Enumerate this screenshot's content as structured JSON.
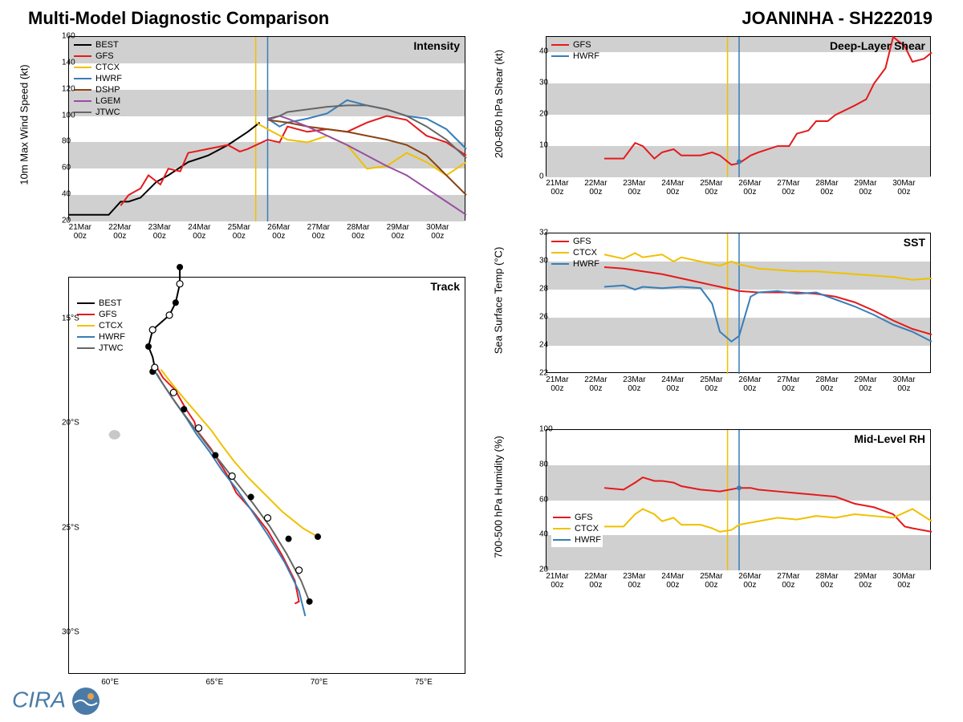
{
  "header": {
    "left": "Multi-Model Diagnostic Comparison",
    "right": "JOANINHA - SH222019"
  },
  "logo": "CIRA",
  "xticks": [
    "21Mar 00z",
    "22Mar 00z",
    "23Mar 00z",
    "24Mar 00z",
    "25Mar 00z",
    "26Mar 00z",
    "27Mar 00z",
    "28Mar 00z",
    "29Mar 00z",
    "30Mar 00z"
  ],
  "xlim": [
    0,
    10
  ],
  "colors": {
    "BEST": "#000000",
    "GFS": "#e41a1c",
    "CTCX": "#f0c000",
    "HWRF": "#377eb8",
    "DSHP": "#8b4513",
    "LGEM": "#984ea3",
    "JTWC": "#666666",
    "band": "#d0d0d0",
    "vline1": "#f0c000",
    "vline2": "#377eb8"
  },
  "vlines": [
    4.7,
    5.0
  ],
  "intensity": {
    "label": "Intensity",
    "ylabel": "10m Max Wind Speed (kt)",
    "ylim": [
      20,
      160
    ],
    "ytick_step": 20,
    "bands": [
      [
        20,
        40
      ],
      [
        60,
        80
      ],
      [
        100,
        120
      ],
      [
        140,
        160
      ]
    ],
    "legend": [
      "BEST",
      "GFS",
      "CTCX",
      "HWRF",
      "DSHP",
      "LGEM",
      "JTWC"
    ],
    "series": {
      "BEST": [
        [
          0,
          25
        ],
        [
          0.5,
          25
        ],
        [
          1,
          25
        ],
        [
          1.3,
          35
        ],
        [
          1.5,
          35
        ],
        [
          1.8,
          38
        ],
        [
          2.2,
          50
        ],
        [
          2.5,
          55
        ],
        [
          3,
          65
        ],
        [
          3.5,
          70
        ],
        [
          4,
          78
        ],
        [
          4.5,
          88
        ],
        [
          4.8,
          95
        ]
      ],
      "GFS": [
        [
          1.3,
          32
        ],
        [
          1.5,
          40
        ],
        [
          1.8,
          45
        ],
        [
          2,
          55
        ],
        [
          2.3,
          48
        ],
        [
          2.5,
          60
        ],
        [
          2.8,
          58
        ],
        [
          3,
          72
        ],
        [
          3.5,
          75
        ],
        [
          4,
          78
        ],
        [
          4.3,
          73
        ],
        [
          4.5,
          75
        ],
        [
          5,
          82
        ],
        [
          5.3,
          80
        ],
        [
          5.5,
          92
        ],
        [
          6,
          88
        ],
        [
          6.5,
          90
        ],
        [
          7,
          88
        ],
        [
          7.5,
          95
        ],
        [
          8,
          100
        ],
        [
          8.5,
          97
        ],
        [
          9,
          85
        ],
        [
          9.5,
          80
        ],
        [
          10,
          70
        ]
      ],
      "CTCX": [
        [
          4.7,
          95
        ],
        [
          5,
          90
        ],
        [
          5.5,
          82
        ],
        [
          6,
          80
        ],
        [
          6.5,
          85
        ],
        [
          7,
          78
        ],
        [
          7.5,
          60
        ],
        [
          8,
          62
        ],
        [
          8.5,
          72
        ],
        [
          9,
          65
        ],
        [
          9.5,
          55
        ],
        [
          10,
          65
        ]
      ],
      "HWRF": [
        [
          5,
          98
        ],
        [
          5.3,
          92
        ],
        [
          5.5,
          95
        ],
        [
          6,
          98
        ],
        [
          6.5,
          102
        ],
        [
          7,
          112
        ],
        [
          7.5,
          108
        ],
        [
          8,
          105
        ],
        [
          8.5,
          100
        ],
        [
          9,
          98
        ],
        [
          9.5,
          90
        ],
        [
          10,
          75
        ]
      ],
      "DSHP": [
        [
          5,
          97
        ],
        [
          5.5,
          95
        ],
        [
          6,
          92
        ],
        [
          6.5,
          90
        ],
        [
          7,
          88
        ],
        [
          7.5,
          85
        ],
        [
          8,
          82
        ],
        [
          8.5,
          78
        ],
        [
          9,
          70
        ],
        [
          9.5,
          55
        ],
        [
          10,
          40
        ]
      ],
      "LGEM": [
        [
          5,
          97
        ],
        [
          5.3,
          100
        ],
        [
          5.5,
          98
        ],
        [
          6,
          92
        ],
        [
          6.5,
          85
        ],
        [
          7,
          78
        ],
        [
          7.5,
          70
        ],
        [
          8,
          62
        ],
        [
          8.5,
          55
        ],
        [
          9,
          45
        ],
        [
          9.5,
          35
        ],
        [
          10,
          25
        ]
      ],
      "JTWC": [
        [
          5,
          98
        ],
        [
          5.3,
          100
        ],
        [
          5.5,
          103
        ],
        [
          6,
          105
        ],
        [
          6.5,
          107
        ],
        [
          7,
          108
        ],
        [
          7.5,
          108
        ],
        [
          8,
          105
        ],
        [
          8.5,
          100
        ],
        [
          9,
          92
        ],
        [
          9.5,
          82
        ],
        [
          10,
          68
        ]
      ]
    }
  },
  "shear": {
    "label": "Deep-Layer Shear",
    "ylabel": "200-850 hPa Shear (kt)",
    "ylim": [
      0,
      45
    ],
    "yticks": [
      0,
      10,
      20,
      30,
      40
    ],
    "bands": [
      [
        0,
        10
      ],
      [
        20,
        30
      ],
      [
        40,
        45
      ]
    ],
    "legend": [
      "GFS",
      "HWRF"
    ],
    "series": {
      "GFS": [
        [
          1.5,
          6
        ],
        [
          2,
          6
        ],
        [
          2.3,
          11
        ],
        [
          2.5,
          10
        ],
        [
          2.8,
          6
        ],
        [
          3,
          8
        ],
        [
          3.3,
          9
        ],
        [
          3.5,
          7
        ],
        [
          4,
          7
        ],
        [
          4.3,
          8
        ],
        [
          4.5,
          7
        ],
        [
          4.8,
          4
        ],
        [
          5,
          4.5
        ],
        [
          5.3,
          7
        ],
        [
          5.5,
          8
        ],
        [
          6,
          10
        ],
        [
          6.3,
          10
        ],
        [
          6.5,
          14
        ],
        [
          6.8,
          15
        ],
        [
          7,
          18
        ],
        [
          7.3,
          18
        ],
        [
          7.5,
          20
        ],
        [
          8,
          23
        ],
        [
          8.3,
          25
        ],
        [
          8.5,
          30
        ],
        [
          8.8,
          35
        ],
        [
          9,
          45
        ],
        [
          9.3,
          42
        ],
        [
          9.5,
          37
        ],
        [
          9.8,
          38
        ],
        [
          10,
          40
        ]
      ],
      "HWRF": [
        [
          5,
          5
        ]
      ]
    }
  },
  "sst": {
    "label": "SST",
    "ylabel": "Sea Surface Temp (°C)",
    "ylim": [
      22,
      32
    ],
    "ytick_step": 2,
    "bands": [
      [
        24,
        26
      ],
      [
        28,
        30
      ]
    ],
    "legend": [
      "GFS",
      "CTCX",
      "HWRF"
    ],
    "series": {
      "GFS": [
        [
          1.5,
          29.6
        ],
        [
          2,
          29.5
        ],
        [
          2.5,
          29.3
        ],
        [
          3,
          29.1
        ],
        [
          3.5,
          28.8
        ],
        [
          4,
          28.5
        ],
        [
          4.5,
          28.2
        ],
        [
          5,
          27.9
        ],
        [
          5.5,
          27.8
        ],
        [
          6,
          27.8
        ],
        [
          6.5,
          27.8
        ],
        [
          7,
          27.7
        ],
        [
          7.5,
          27.5
        ],
        [
          8,
          27.1
        ],
        [
          8.5,
          26.5
        ],
        [
          9,
          25.8
        ],
        [
          9.5,
          25.2
        ],
        [
          10,
          24.8
        ]
      ],
      "CTCX": [
        [
          1.5,
          30.5
        ],
        [
          2,
          30.2
        ],
        [
          2.3,
          30.6
        ],
        [
          2.5,
          30.3
        ],
        [
          3,
          30.5
        ],
        [
          3.3,
          30
        ],
        [
          3.5,
          30.3
        ],
        [
          4,
          30
        ],
        [
          4.5,
          29.7
        ],
        [
          4.8,
          30
        ],
        [
          5,
          29.8
        ],
        [
          5.5,
          29.5
        ],
        [
          6,
          29.4
        ],
        [
          6.5,
          29.3
        ],
        [
          7,
          29.3
        ],
        [
          7.5,
          29.2
        ],
        [
          8,
          29.1
        ],
        [
          8.5,
          29
        ],
        [
          9,
          28.9
        ],
        [
          9.5,
          28.7
        ],
        [
          10,
          28.8
        ]
      ],
      "HWRF": [
        [
          1.5,
          28.2
        ],
        [
          2,
          28.3
        ],
        [
          2.3,
          28
        ],
        [
          2.5,
          28.2
        ],
        [
          3,
          28.1
        ],
        [
          3.5,
          28.2
        ],
        [
          4,
          28.1
        ],
        [
          4.3,
          27
        ],
        [
          4.5,
          25
        ],
        [
          4.8,
          24.3
        ],
        [
          5,
          24.7
        ],
        [
          5.3,
          27.5
        ],
        [
          5.5,
          27.8
        ],
        [
          6,
          27.9
        ],
        [
          6.5,
          27.7
        ],
        [
          7,
          27.8
        ],
        [
          7.5,
          27.3
        ],
        [
          8,
          26.8
        ],
        [
          8.5,
          26.2
        ],
        [
          9,
          25.5
        ],
        [
          9.5,
          25
        ],
        [
          10,
          24.3
        ]
      ]
    }
  },
  "rh": {
    "label": "Mid-Level RH",
    "ylabel": "700-500 hPa Humidity (%)",
    "ylim": [
      20,
      100
    ],
    "ytick_step": 20,
    "bands": [
      [
        20,
        40
      ],
      [
        60,
        80
      ]
    ],
    "legend": [
      "GFS",
      "CTCX",
      "HWRF"
    ],
    "series": {
      "GFS": [
        [
          1.5,
          67
        ],
        [
          2,
          66
        ],
        [
          2.3,
          70
        ],
        [
          2.5,
          73
        ],
        [
          2.8,
          71
        ],
        [
          3,
          71
        ],
        [
          3.3,
          70
        ],
        [
          3.5,
          68
        ],
        [
          4,
          66
        ],
        [
          4.5,
          65
        ],
        [
          5,
          67
        ],
        [
          5.3,
          67
        ],
        [
          5.5,
          66
        ],
        [
          6,
          65
        ],
        [
          6.5,
          64
        ],
        [
          7,
          63
        ],
        [
          7.5,
          62
        ],
        [
          8,
          58
        ],
        [
          8.5,
          56
        ],
        [
          9,
          52
        ],
        [
          9.3,
          45
        ],
        [
          9.5,
          44
        ],
        [
          10,
          42
        ]
      ],
      "CTCX": [
        [
          1.5,
          45
        ],
        [
          2,
          45
        ],
        [
          2.3,
          52
        ],
        [
          2.5,
          55
        ],
        [
          2.8,
          52
        ],
        [
          3,
          48
        ],
        [
          3.3,
          50
        ],
        [
          3.5,
          46
        ],
        [
          4,
          46
        ],
        [
          4.3,
          44
        ],
        [
          4.5,
          42
        ],
        [
          4.8,
          43
        ],
        [
          5,
          46
        ],
        [
          5.5,
          48
        ],
        [
          6,
          50
        ],
        [
          6.5,
          49
        ],
        [
          7,
          51
        ],
        [
          7.5,
          50
        ],
        [
          8,
          52
        ],
        [
          8.5,
          51
        ],
        [
          9,
          50
        ],
        [
          9.3,
          53
        ],
        [
          9.5,
          55
        ],
        [
          10,
          48
        ]
      ],
      "HWRF": [
        [
          5,
          67
        ]
      ]
    }
  },
  "track": {
    "label": "Track",
    "ylabel_left": "",
    "xlims": [
      58,
      77
    ],
    "xticks": [
      60,
      65,
      70,
      75
    ],
    "ylim": [
      -32,
      -13
    ],
    "yticks": [
      -30,
      -25,
      -20,
      -15
    ],
    "legend": [
      "BEST",
      "GFS",
      "CTCX",
      "HWRF",
      "JTWC"
    ],
    "landblob": [
      [
        60.2,
        -20.5
      ]
    ],
    "series": {
      "BEST": [
        [
          63.3,
          -12.5
        ],
        [
          63.3,
          -13.3
        ],
        [
          63.1,
          -14.2
        ],
        [
          62.8,
          -14.8
        ],
        [
          62.0,
          -15.5
        ],
        [
          61.8,
          -16.3
        ],
        [
          62.0,
          -16.8
        ],
        [
          62.1,
          -17.3
        ],
        [
          62.0,
          -17.5
        ]
      ],
      "GFS": [
        [
          62.2,
          -17.3
        ],
        [
          62.5,
          -17.8
        ],
        [
          63.1,
          -18.4
        ],
        [
          63.2,
          -18.6
        ],
        [
          63.6,
          -19.3
        ],
        [
          64.0,
          -19.9
        ],
        [
          64.1,
          -20.3
        ],
        [
          64.8,
          -21.2
        ],
        [
          65.1,
          -21.7
        ],
        [
          65.6,
          -22.5
        ],
        [
          66.0,
          -23.3
        ],
        [
          66.8,
          -24.2
        ],
        [
          67.5,
          -25.1
        ],
        [
          68.2,
          -26.3
        ],
        [
          68.8,
          -27.5
        ],
        [
          69.0,
          -28.5
        ],
        [
          68.8,
          -28.6
        ]
      ],
      "CTCX": [
        [
          62.4,
          -17.4
        ],
        [
          62.7,
          -17.8
        ],
        [
          63.1,
          -18.3
        ],
        [
          63.6,
          -18.9
        ],
        [
          64.2,
          -19.6
        ],
        [
          64.8,
          -20.3
        ],
        [
          65.3,
          -21.0
        ],
        [
          65.9,
          -21.8
        ],
        [
          66.6,
          -22.6
        ],
        [
          67.4,
          -23.4
        ],
        [
          68.2,
          -24.2
        ],
        [
          69.2,
          -25.0
        ],
        [
          69.9,
          -25.4
        ]
      ],
      "HWRF": [
        [
          62.0,
          -17.3
        ],
        [
          62.3,
          -17.8
        ],
        [
          62.7,
          -18.4
        ],
        [
          63.1,
          -19.0
        ],
        [
          63.6,
          -19.7
        ],
        [
          64.1,
          -20.5
        ],
        [
          64.7,
          -21.3
        ],
        [
          65.3,
          -22.2
        ],
        [
          66.0,
          -23.1
        ],
        [
          66.7,
          -24.1
        ],
        [
          67.5,
          -25.3
        ],
        [
          68.3,
          -26.6
        ],
        [
          69.0,
          -28.0
        ],
        [
          69.3,
          -29.2
        ]
      ],
      "JTWC": [
        [
          62.2,
          -17.6
        ],
        [
          62.5,
          -18.1
        ],
        [
          62.9,
          -18.7
        ],
        [
          63.4,
          -19.4
        ],
        [
          64.0,
          -20.2
        ],
        [
          64.6,
          -21.0
        ],
        [
          65.3,
          -21.9
        ],
        [
          66.0,
          -22.8
        ],
        [
          66.8,
          -23.8
        ],
        [
          67.6,
          -24.9
        ],
        [
          68.4,
          -26.2
        ],
        [
          69.1,
          -27.5
        ],
        [
          69.5,
          -28.5
        ]
      ]
    },
    "markers_black": [
      [
        63.3,
        -12.5
      ],
      [
        63.1,
        -14.2
      ],
      [
        61.8,
        -16.3
      ],
      [
        62.0,
        -17.5
      ],
      [
        63.5,
        -19.3
      ],
      [
        65.0,
        -21.5
      ],
      [
        66.7,
        -23.5
      ],
      [
        68.5,
        -25.5
      ],
      [
        69.5,
        -28.5
      ],
      [
        69.9,
        -25.4
      ]
    ],
    "markers_open": [
      [
        63.3,
        -13.3
      ],
      [
        62.8,
        -14.8
      ],
      [
        62.0,
        -15.5
      ],
      [
        62.1,
        -17.3
      ],
      [
        63.0,
        -18.5
      ],
      [
        64.2,
        -20.2
      ],
      [
        65.8,
        -22.5
      ],
      [
        67.5,
        -24.5
      ],
      [
        69.0,
        -27.0
      ]
    ]
  }
}
